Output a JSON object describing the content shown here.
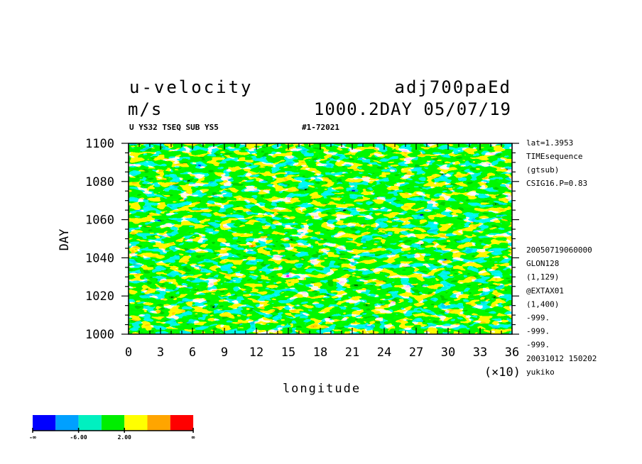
{
  "chart_data": {
    "type": "heatmap",
    "title_left": "u-velocity",
    "title_right": "adj700paEd",
    "units": "m/s",
    "time_label": "1000.2DAY 05/07/19",
    "subtitle_left": "U YS32 TSEQ SUB YS5",
    "subtitle_right": "#1-72021",
    "xlabel": "longitude",
    "x_multiplier": "(×10)",
    "ylabel": "DAY",
    "xlim": [
      0,
      36
    ],
    "ylim": [
      1000,
      1100
    ],
    "x_ticks": [
      "0",
      "3",
      "6",
      "9",
      "12",
      "15",
      "18",
      "21",
      "24",
      "27",
      "30",
      "33",
      "36"
    ],
    "y_ticks": [
      "1000",
      "1020",
      "1040",
      "1060",
      "1080",
      "1100"
    ],
    "colorbar": {
      "colors": [
        "#0000ff",
        "#00a0ff",
        "#00f0c0",
        "#00ee00",
        "#ffff00",
        "#ffa500",
        "#ff0000"
      ],
      "labels": [
        "-∞",
        "-6.00",
        "2.00",
        "∞"
      ]
    },
    "info_top": [
      "lat=1.3953",
      "TIMEsequence",
      "(gtsub)",
      "CSIG16.P=0.83"
    ],
    "info_bottom": [
      "20050719060000",
      "GLON128",
      "(1,129)",
      "@EXTAX01",
      "(1,400)",
      "-999.",
      "-999.",
      "-999.",
      "20031012 150202",
      "yukiko"
    ]
  }
}
